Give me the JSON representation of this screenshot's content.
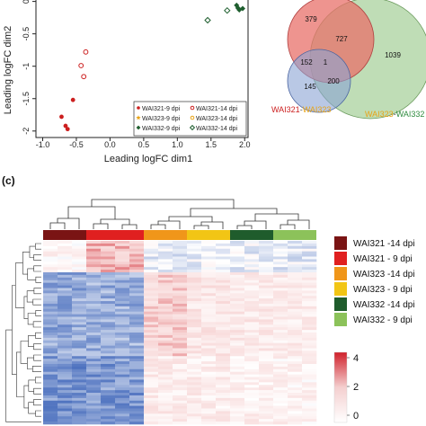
{
  "chart_data": [
    {
      "type": "scatter",
      "xlabel": "Leading logFC dim1",
      "ylabel": "Leading logFC dim2",
      "xticks": [
        "-1.0",
        "-0.5",
        "0.0",
        "0.5",
        "1.0",
        "1.5",
        "2.0"
      ],
      "yticks": [
        "0",
        "-0.5",
        "-1",
        "-1.5",
        "-2"
      ],
      "xlim": [
        -1.1,
        2.05
      ],
      "ylim": [
        -2.1,
        0.05
      ],
      "legend_position": "bottom-right",
      "series": [
        {
          "name": "WAI321-9 dpi",
          "marker": "filled-circle",
          "color": "#cc1f1f",
          "points": [
            [
              -0.72,
              -1.78
            ],
            [
              -0.66,
              -1.92
            ],
            [
              -0.63,
              -1.97
            ],
            [
              -0.55,
              -1.52
            ]
          ]
        },
        {
          "name": "WAI321-14 dpi",
          "marker": "open-circle",
          "color": "#cc1f1f",
          "points": [
            [
              -0.36,
              -0.78
            ],
            [
              -0.43,
              -0.99
            ],
            [
              -0.39,
              -1.16
            ]
          ]
        },
        {
          "name": "WAI323-9 dpi",
          "marker": "filled-star",
          "color": "#e8a316",
          "points": []
        },
        {
          "name": "WAI323-14 dpi",
          "marker": "open-circle",
          "color": "#e8a316",
          "points": []
        },
        {
          "name": "WAI332-9 dpi",
          "marker": "filled-diamond",
          "color": "#1e5e2e",
          "points": [
            [
              1.88,
              -0.06
            ],
            [
              1.92,
              -0.13
            ],
            [
              1.97,
              -0.11
            ],
            [
              1.9,
              -0.1
            ]
          ]
        },
        {
          "name": "WAI332-14 dpi",
          "marker": "open-diamond",
          "color": "#1e5e2e",
          "points": [
            [
              1.45,
              -0.29
            ],
            [
              1.74,
              -0.14
            ]
          ]
        }
      ]
    },
    {
      "type": "venn",
      "sets": [
        {
          "name": "WAI321",
          "color": "#e55a57"
        },
        {
          "name": "WAI323",
          "color": "#e8a316"
        },
        {
          "name": "WAI332",
          "color": "#3a9a4a"
        }
      ],
      "regions": [
        {
          "sets": [
            "WAI321"
          ],
          "value": 379
        },
        {
          "sets": [
            "WAI321",
            "WAI332"
          ],
          "value": 727
        },
        {
          "sets": [
            "WAI332"
          ],
          "value": 1039
        },
        {
          "sets": [
            "WAI321",
            "WAI323"
          ],
          "value": 152
        },
        {
          "sets": [
            "WAI321",
            "WAI323",
            "WAI332"
          ],
          "value": 1
        },
        {
          "sets": [
            "WAI323"
          ],
          "value": 145
        },
        {
          "sets": [
            "WAI323",
            "WAI332"
          ],
          "value": 200
        }
      ],
      "labels": [
        {
          "parts": [
            "WAI321",
            "-",
            "WAI323"
          ],
          "colors": [
            "#cc1f1f",
            "#555555",
            "#e8a316"
          ]
        },
        {
          "parts": [
            "WAI323",
            "-",
            "WAI332"
          ],
          "colors": [
            "#e8a316",
            "#555555",
            "#2e8b3e"
          ]
        }
      ]
    },
    {
      "type": "heatmap",
      "panel_label": "(c)",
      "column_groups": [
        {
          "name": "WAI321 -14 dpi",
          "color": "#7a1414",
          "columns": 3
        },
        {
          "name": "WAI321 -  9 dpi",
          "color": "#e02020",
          "columns": 4
        },
        {
          "name": "WAI323 -14 dpi",
          "color": "#f0961a",
          "columns": 3
        },
        {
          "name": "WAI323 -  9 dpi",
          "color": "#f2c515",
          "columns": 3
        },
        {
          "name": "WAI332 -14 dpi",
          "color": "#1f5c2c",
          "columns": 3
        },
        {
          "name": "WAI332 -  9 dpi",
          "color": "#8cc25a",
          "columns": 3
        }
      ],
      "color_scale": {
        "ticks": [
          "4",
          "2",
          "0"
        ],
        "min": 0,
        "max": 4,
        "colors": [
          "#ffffff",
          "#f7d4d4",
          "#d0202a"
        ]
      },
      "low_color": "#3a62b8",
      "row_blocks": [
        {
          "rows": 12,
          "levels": [
            0.5,
            0.5,
            0.5,
            2.2,
            2.2,
            2.2,
            2.2,
            -0.3,
            -0.3,
            -0.3,
            -0.2,
            -0.2,
            -0.2,
            -0.2,
            -0.2,
            -0.2,
            -0.3,
            -0.3,
            -0.3
          ]
        },
        {
          "rows": 32,
          "levels": [
            -1.6,
            -1.6,
            -1.6,
            -1.5,
            -1.5,
            -1.5,
            -1.5,
            1.8,
            1.8,
            1.8,
            1.2,
            1.2,
            1.2,
            1.0,
            1.0,
            1.0,
            0.9,
            0.9,
            0.9
          ]
        },
        {
          "rows": 26,
          "levels": [
            -2.0,
            -2.0,
            -2.0,
            -1.9,
            -1.9,
            -1.9,
            -1.9,
            0.9,
            0.9,
            0.9,
            0.8,
            0.8,
            0.8,
            0.7,
            0.7,
            0.7,
            0.6,
            0.6,
            0.6
          ]
        }
      ]
    }
  ]
}
